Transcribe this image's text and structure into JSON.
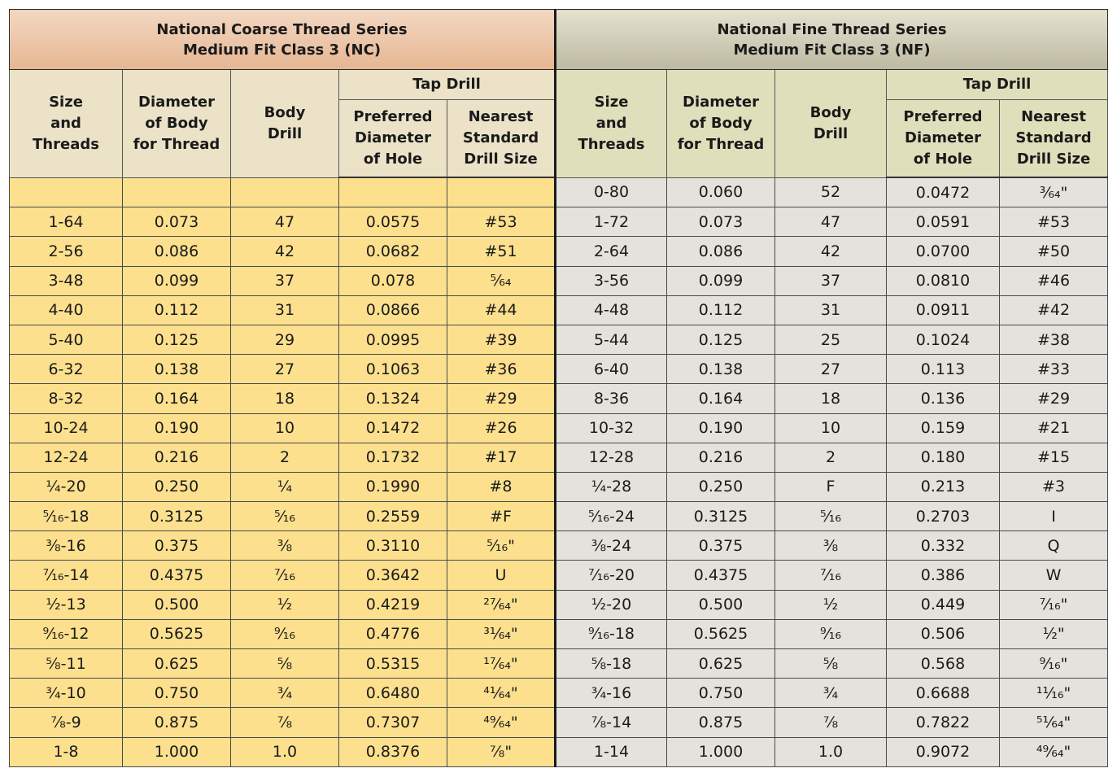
{
  "nc_title": {
    "line1": "National Coarse Thread Series",
    "line2": "Medium Fit Class 3 (NC)"
  },
  "nf_title": {
    "line1": "National Fine Thread Series",
    "line2": "Medium Fit Class 3 (NF)"
  },
  "headers": {
    "size_threads": [
      "Size",
      "and",
      "Threads"
    ],
    "diameter_body": [
      "Diameter",
      "of Body",
      "for Thread"
    ],
    "body_drill": [
      "Body",
      "Drill"
    ],
    "tap_drill": "Tap Drill",
    "preferred_diameter": [
      "Preferred",
      "Diameter",
      "of Hole"
    ],
    "nearest_standard": [
      "Nearest",
      "Standard",
      "Drill Size"
    ]
  },
  "rows": [
    {
      "nc": [
        "",
        "",
        "",
        "",
        ""
      ],
      "nf": [
        "0-80",
        "0.060",
        "52",
        "0.0472",
        "³⁄₆₄\""
      ]
    },
    {
      "nc": [
        "1-64",
        "0.073",
        "47",
        "0.0575",
        "#53"
      ],
      "nf": [
        "1-72",
        "0.073",
        "47",
        "0.0591",
        "#53"
      ]
    },
    {
      "nc": [
        "2-56",
        "0.086",
        "42",
        "0.0682",
        "#51"
      ],
      "nf": [
        "2-64",
        "0.086",
        "42",
        "0.0700",
        "#50"
      ]
    },
    {
      "nc": [
        "3-48",
        "0.099",
        "37",
        "0.078",
        "⁵⁄₆₄"
      ],
      "nf": [
        "3-56",
        "0.099",
        "37",
        "0.0810",
        "#46"
      ]
    },
    {
      "nc": [
        "4-40",
        "0.112",
        "31",
        "0.0866",
        "#44"
      ],
      "nf": [
        "4-48",
        "0.112",
        "31",
        "0.0911",
        "#42"
      ]
    },
    {
      "nc": [
        "5-40",
        "0.125",
        "29",
        "0.0995",
        "#39"
      ],
      "nf": [
        "5-44",
        "0.125",
        "25",
        "0.1024",
        "#38"
      ]
    },
    {
      "nc": [
        "6-32",
        "0.138",
        "27",
        "0.1063",
        "#36"
      ],
      "nf": [
        "6-40",
        "0.138",
        "27",
        "0.113",
        "#33"
      ]
    },
    {
      "nc": [
        "8-32",
        "0.164",
        "18",
        "0.1324",
        "#29"
      ],
      "nf": [
        "8-36",
        "0.164",
        "18",
        "0.136",
        "#29"
      ]
    },
    {
      "nc": [
        "10-24",
        "0.190",
        "10",
        "0.1472",
        "#26"
      ],
      "nf": [
        "10-32",
        "0.190",
        "10",
        "0.159",
        "#21"
      ]
    },
    {
      "nc": [
        "12-24",
        "0.216",
        "2",
        "0.1732",
        "#17"
      ],
      "nf": [
        "12-28",
        "0.216",
        "2",
        "0.180",
        "#15"
      ]
    },
    {
      "nc": [
        "¼-20",
        "0.250",
        "¼",
        "0.1990",
        "#8"
      ],
      "nf": [
        "¼-28",
        "0.250",
        "F",
        "0.213",
        "#3"
      ]
    },
    {
      "nc": [
        "⁵⁄₁₆-18",
        "0.3125",
        "⁵⁄₁₆",
        "0.2559",
        "#F"
      ],
      "nf": [
        "⁵⁄₁₆-24",
        "0.3125",
        "⁵⁄₁₆",
        "0.2703",
        "I"
      ]
    },
    {
      "nc": [
        "⅜-16",
        "0.375",
        "⅜",
        "0.3110",
        "⁵⁄₁₆\""
      ],
      "nf": [
        "⅜-24",
        "0.375",
        "⅜",
        "0.332",
        "Q"
      ]
    },
    {
      "nc": [
        "⁷⁄₁₆-14",
        "0.4375",
        "⁷⁄₁₆",
        "0.3642",
        "U"
      ],
      "nf": [
        "⁷⁄₁₆-20",
        "0.4375",
        "⁷⁄₁₆",
        "0.386",
        "W"
      ]
    },
    {
      "nc": [
        "½-13",
        "0.500",
        "½",
        "0.4219",
        "²⁷⁄₆₄\""
      ],
      "nf": [
        "½-20",
        "0.500",
        "½",
        "0.449",
        "⁷⁄₁₆\""
      ]
    },
    {
      "nc": [
        "⁹⁄₁₆-12",
        "0.5625",
        "⁹⁄₁₆",
        "0.4776",
        "³¹⁄₆₄\""
      ],
      "nf": [
        "⁹⁄₁₆-18",
        "0.5625",
        "⁹⁄₁₆",
        "0.506",
        "½\""
      ]
    },
    {
      "nc": [
        "⅝-11",
        "0.625",
        "⅝",
        "0.5315",
        "¹⁷⁄₆₄\""
      ],
      "nf": [
        "⅝-18",
        "0.625",
        "⅝",
        "0.568",
        "⁹⁄₁₆\""
      ]
    },
    {
      "nc": [
        "¾-10",
        "0.750",
        "¾",
        "0.6480",
        "⁴¹⁄₆₄\""
      ],
      "nf": [
        "¾-16",
        "0.750",
        "¾",
        "0.6688",
        "¹¹⁄₁₆\""
      ]
    },
    {
      "nc": [
        "⅞-9",
        "0.875",
        "⅞",
        "0.7307",
        "⁴⁹⁄₆₄\""
      ],
      "nf": [
        "⅞-14",
        "0.875",
        "⅞",
        "0.7822",
        "⁵¹⁄₆₄\""
      ]
    },
    {
      "nc": [
        "1-8",
        "1.000",
        "1.0",
        "0.8376",
        "⅞\""
      ],
      "nf": [
        "1-14",
        "1.000",
        "1.0",
        "0.9072",
        "⁴⁹⁄₆₄\""
      ]
    }
  ]
}
